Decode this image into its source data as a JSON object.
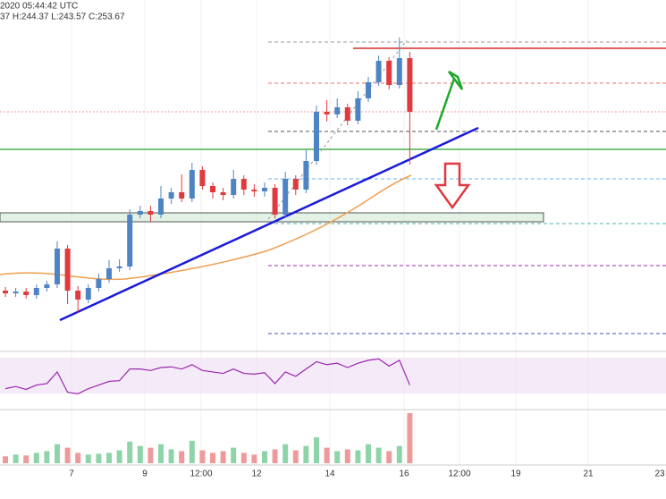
{
  "chart_data": {
    "type": "candlestick",
    "title": "2020 05:44:42 UTC",
    "subtitle": "37 H:244.37 L:243.57 C:253.67",
    "categories": [
      null,
      null,
      null,
      null,
      null,
      null,
      null,
      null,
      null,
      null,
      null,
      null,
      null,
      null,
      null,
      null,
      null,
      null,
      null,
      null,
      null,
      null,
      null,
      null,
      null,
      null,
      null,
      null,
      null,
      null,
      null,
      null,
      null,
      null,
      null,
      null,
      null,
      null,
      null,
      null
    ],
    "open": [
      233.5,
      233.2,
      233.4,
      233.0,
      233.8,
      234.2,
      238.2,
      233.5,
      232.5,
      233.8,
      234.8,
      236.0,
      236.2,
      242.0,
      242.4,
      242.0,
      243.8,
      244.5,
      243.8,
      247.0,
      245.2,
      244.5,
      244.2,
      246.0,
      244.8,
      244.6,
      245.0,
      242.0,
      246.0,
      244.8,
      248.0,
      253.5,
      253.2,
      254.0,
      252.5,
      255.0,
      256.8,
      259.2,
      256.5,
      259.5
    ],
    "high": [
      233.9,
      233.8,
      233.8,
      234.2,
      234.6,
      239.0,
      238.6,
      234.0,
      234.2,
      235.4,
      236.9,
      237.0,
      242.6,
      243.0,
      243.0,
      245.2,
      245.0,
      246.5,
      247.8,
      247.4,
      245.6,
      245.0,
      247.0,
      246.4,
      245.4,
      245.6,
      245.4,
      246.8,
      246.4,
      249.2,
      254.2,
      254.8,
      255.0,
      254.4,
      255.8,
      257.4,
      259.8,
      259.6,
      261.8,
      260.2
    ],
    "low": [
      232.8,
      232.8,
      232.6,
      232.6,
      233.4,
      233.8,
      232.0,
      231.0,
      232.1,
      233.4,
      234.4,
      235.6,
      235.8,
      241.6,
      241.2,
      241.6,
      243.2,
      243.4,
      243.4,
      244.8,
      243.8,
      243.6,
      243.8,
      244.2,
      244.0,
      244.0,
      241.6,
      241.6,
      244.2,
      244.4,
      247.6,
      252.4,
      252.8,
      252.0,
      252.1,
      254.6,
      256.4,
      256.0,
      256.1,
      247.6
    ],
    "close": [
      233.2,
      233.4,
      233.0,
      233.8,
      234.2,
      238.2,
      233.5,
      232.5,
      233.8,
      234.8,
      236.0,
      236.2,
      242.0,
      242.4,
      242.0,
      243.8,
      244.5,
      243.8,
      247.0,
      245.2,
      244.5,
      244.2,
      246.0,
      244.8,
      244.6,
      245.0,
      242.0,
      246.0,
      244.8,
      248.0,
      253.5,
      253.2,
      254.0,
      252.5,
      255.0,
      256.8,
      259.2,
      256.5,
      259.5,
      253.5
    ],
    "ylim": [
      227,
      266
    ],
    "up_color": "#4e84c4",
    "down_color": "#e0393e",
    "xtick_labels": [
      "7",
      "9",
      "12:00",
      "12",
      "14",
      "16",
      "12:00",
      "19",
      "21",
      "23"
    ],
    "rsi": {
      "values": [
        45,
        48,
        44,
        50,
        52,
        68,
        40,
        38,
        45,
        50,
        55,
        56,
        72,
        72,
        70,
        74,
        75,
        72,
        78,
        70,
        68,
        66,
        72,
        66,
        65,
        67,
        52,
        68,
        62,
        72,
        82,
        78,
        80,
        74,
        80,
        84,
        86,
        76,
        84,
        50
      ],
      "ylim": [
        20,
        90
      ],
      "color": "#9c27b0"
    },
    "volume": {
      "values": [
        8,
        10,
        9,
        12,
        14,
        22,
        18,
        12,
        10,
        11,
        12,
        15,
        25,
        20,
        18,
        22,
        16,
        14,
        26,
        15,
        12,
        14,
        18,
        12,
        10,
        14,
        16,
        22,
        15,
        20,
        30,
        18,
        14,
        16,
        15,
        22,
        18,
        14,
        20,
        58
      ],
      "ylim": [
        0,
        60
      ],
      "up_color": "#8fd4a8",
      "down_color": "#ef9a9a"
    }
  }
}
